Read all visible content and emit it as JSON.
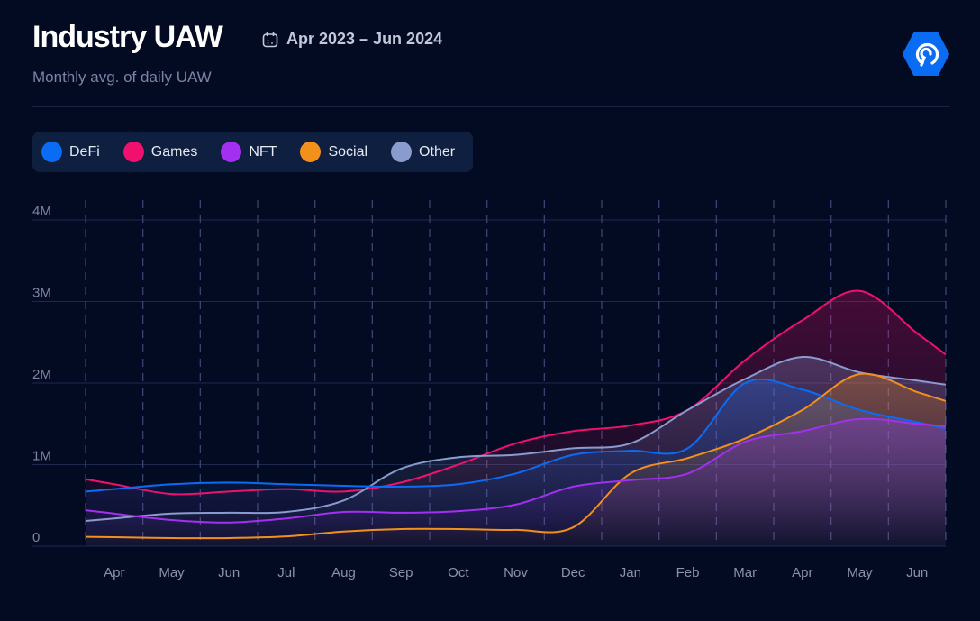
{
  "header": {
    "title": "Industry UAW",
    "date_range": "Apr 2023 – Jun 2024",
    "subtitle": "Monthly avg. of daily UAW",
    "calendar_icon": "calendar-icon",
    "logo_icon": "hexagon-signal-logo"
  },
  "chart_data": {
    "type": "area",
    "title": "Industry UAW",
    "subtitle": "Monthly avg. of daily UAW",
    "xlabel": "",
    "ylabel": "",
    "categories": [
      "Apr",
      "May",
      "Jun",
      "Jul",
      "Aug",
      "Sep",
      "Oct",
      "Nov",
      "Dec",
      "Jan",
      "Feb",
      "Mar",
      "Apr",
      "May",
      "Jun"
    ],
    "yticks": [
      "0",
      "1M",
      "2M",
      "3M",
      "4M"
    ],
    "ylim": [
      0,
      4000000
    ],
    "grid": true,
    "legend_position": "top-left",
    "series": [
      {
        "name": "DeFi",
        "color": "#0a6cf5",
        "values": [
          700000,
          760000,
          780000,
          760000,
          740000,
          730000,
          760000,
          890000,
          1120000,
          1170000,
          1200000,
          2000000,
          1920000,
          1670000,
          1520000
        ]
      },
      {
        "name": "Games",
        "color": "#f0106e",
        "values": [
          760000,
          640000,
          670000,
          700000,
          670000,
          780000,
          1000000,
          1260000,
          1410000,
          1480000,
          1670000,
          2280000,
          2770000,
          3130000,
          2610000
        ]
      },
      {
        "name": "NFT",
        "color": "#a330f0",
        "values": [
          400000,
          320000,
          290000,
          340000,
          420000,
          410000,
          430000,
          510000,
          730000,
          810000,
          890000,
          1280000,
          1410000,
          1560000,
          1500000
        ]
      },
      {
        "name": "Social",
        "color": "#f3901c",
        "values": [
          110000,
          100000,
          100000,
          120000,
          180000,
          210000,
          210000,
          200000,
          230000,
          890000,
          1080000,
          1320000,
          1670000,
          2110000,
          1890000
        ]
      },
      {
        "name": "Other",
        "color": "#8a9bd0",
        "values": [
          340000,
          400000,
          410000,
          420000,
          560000,
          950000,
          1090000,
          1120000,
          1200000,
          1260000,
          1670000,
          2050000,
          2320000,
          2130000,
          2030000
        ]
      }
    ]
  }
}
